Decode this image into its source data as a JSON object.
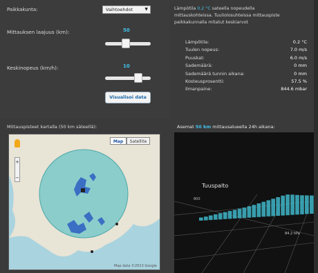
{
  "controls": {
    "location_label": "Paikkakunta:",
    "location_value": "Vaihtoehdot",
    "radius_label": "Mittauksen laajuus (km):",
    "radius_value": "50",
    "radius_fraction": 0.45,
    "avg_speed_label": "Keskinopeus (km/h):",
    "avg_speed_value": "10",
    "avg_speed_fraction": 0.72,
    "submit_label": "Visualisoi data"
  },
  "intro": {
    "line1_pre": "Lämpötila",
    "line1_hl1": "0.2 °C",
    "line1_mid": "sateella",
    "line1_post": "nopeudella",
    "line2": "mittauskohteissa. Tuuliolosuhteissa mittauspiste",
    "line3": "paikkakunnalla mitatut keskiarvot"
  },
  "stats": [
    {
      "key": "Lämpötila:",
      "value": "0.2 °C"
    },
    {
      "key": "Tuulen nopeus:",
      "value": "7.0 m/s"
    },
    {
      "key": "Puuskat:",
      "value": "6.0 m/s"
    },
    {
      "key": "Sademäärä:",
      "value": "0 mm"
    },
    {
      "key": "Sademäärä tunnin aikana:",
      "value": "0 mm"
    },
    {
      "key": "Kosteusprosentti:",
      "value": "57.5 %"
    },
    {
      "key": "Ilmanpaine:",
      "value": "844.6 mbar"
    }
  ],
  "map": {
    "title": "Mittauspisteet kartalla (50 km säteellä):",
    "btn_map": "Map",
    "btn_satellite": "Satellite",
    "footer": "Map data ©2013 Google",
    "colors": {
      "sea": "#a9d3df",
      "land": "#e8e4d6",
      "circle": "#6cc6c7",
      "lake": "#3a6fc4"
    }
  },
  "vis": {
    "title_pre": "Asemat",
    "title_hl": "50 km",
    "title_post": "mittausalueella 24h aikana:",
    "label_main": "Tuuspalto",
    "label_small": "800",
    "label_right": "84.2 hPa",
    "bar_color": "#3fb6c9",
    "bar_values": [
      0.15,
      0.18,
      0.22,
      0.26,
      0.3,
      0.34,
      0.38,
      0.42,
      0.46,
      0.5,
      0.55,
      0.6,
      0.66,
      0.72,
      0.78,
      0.84,
      0.9,
      0.96,
      1.0,
      0.98,
      0.95,
      0.92,
      0.9,
      0.88
    ]
  }
}
